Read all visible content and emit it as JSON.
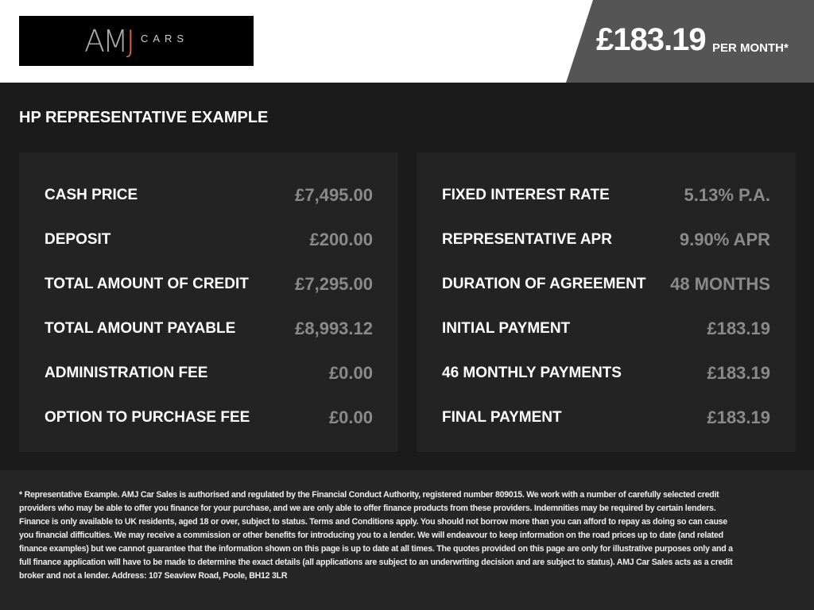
{
  "header": {
    "logo_text": "AMJ CARS",
    "logo_main": "AM",
    "logo_j": "J",
    "logo_sub": "CARS",
    "price": "£183.19",
    "per_month": "PER MONTH*"
  },
  "title": "HP REPRESENTATIVE EXAMPLE",
  "left": [
    {
      "label": "CASH PRICE",
      "value": "£7,495.00"
    },
    {
      "label": "DEPOSIT",
      "value": "£200.00"
    },
    {
      "label": "TOTAL AMOUNT OF CREDIT",
      "value": "£7,295.00"
    },
    {
      "label": "TOTAL AMOUNT PAYABLE",
      "value": "£8,993.12"
    },
    {
      "label": "ADMINISTRATION FEE",
      "value": "£0.00"
    },
    {
      "label": "OPTION TO PURCHASE FEE",
      "value": "£0.00"
    }
  ],
  "right": [
    {
      "label": "FIXED INTEREST RATE",
      "value": "5.13% P.A."
    },
    {
      "label": "REPRESENTATIVE APR",
      "value": "9.90% APR"
    },
    {
      "label": "DURATION OF AGREEMENT",
      "value": "48 MONTHS"
    },
    {
      "label": "INITIAL PAYMENT",
      "value": "£183.19"
    },
    {
      "label": "46 MONTHLY PAYMENTS",
      "value": "£183.19"
    },
    {
      "label": "FINAL PAYMENT",
      "value": "£183.19"
    }
  ],
  "disclaimer": "* Representative Example. AMJ Car Sales is authorised and regulated by the Financial Conduct Authority, registered number 809015. We work with a number of carefully selected credit providers who may be able to offer you finance for your purchase, and we are only able to offer finance products from these providers. Indemnities may be required by certain lenders. Finance is only available to UK residents, aged 18 or over, subject to status. Terms and Conditions apply. You should not borrow more than you can afford to repay as doing so can cause you financial difficulties. We may receive a commission or other benefits for introducing you to a lender. We will endeavour to keep information on the road prices up to date (and related finance examples) but we cannot guarantee that the information shown on this page is up to date at all times. The quotes provided on this page are only for illustrative purposes only and a full finance application will have to be made to determine the exact details (all applications are subject to an underwriting decision and are subject to status). AMJ Car Sales acts as a credit broker and not a lender. Address: 107 Seaview Road, Poole, BH12 3LR",
  "colors": {
    "accent": "#e06a2c",
    "price_box": "#555555",
    "background": "#1b1b1b",
    "panel": "#232323"
  }
}
